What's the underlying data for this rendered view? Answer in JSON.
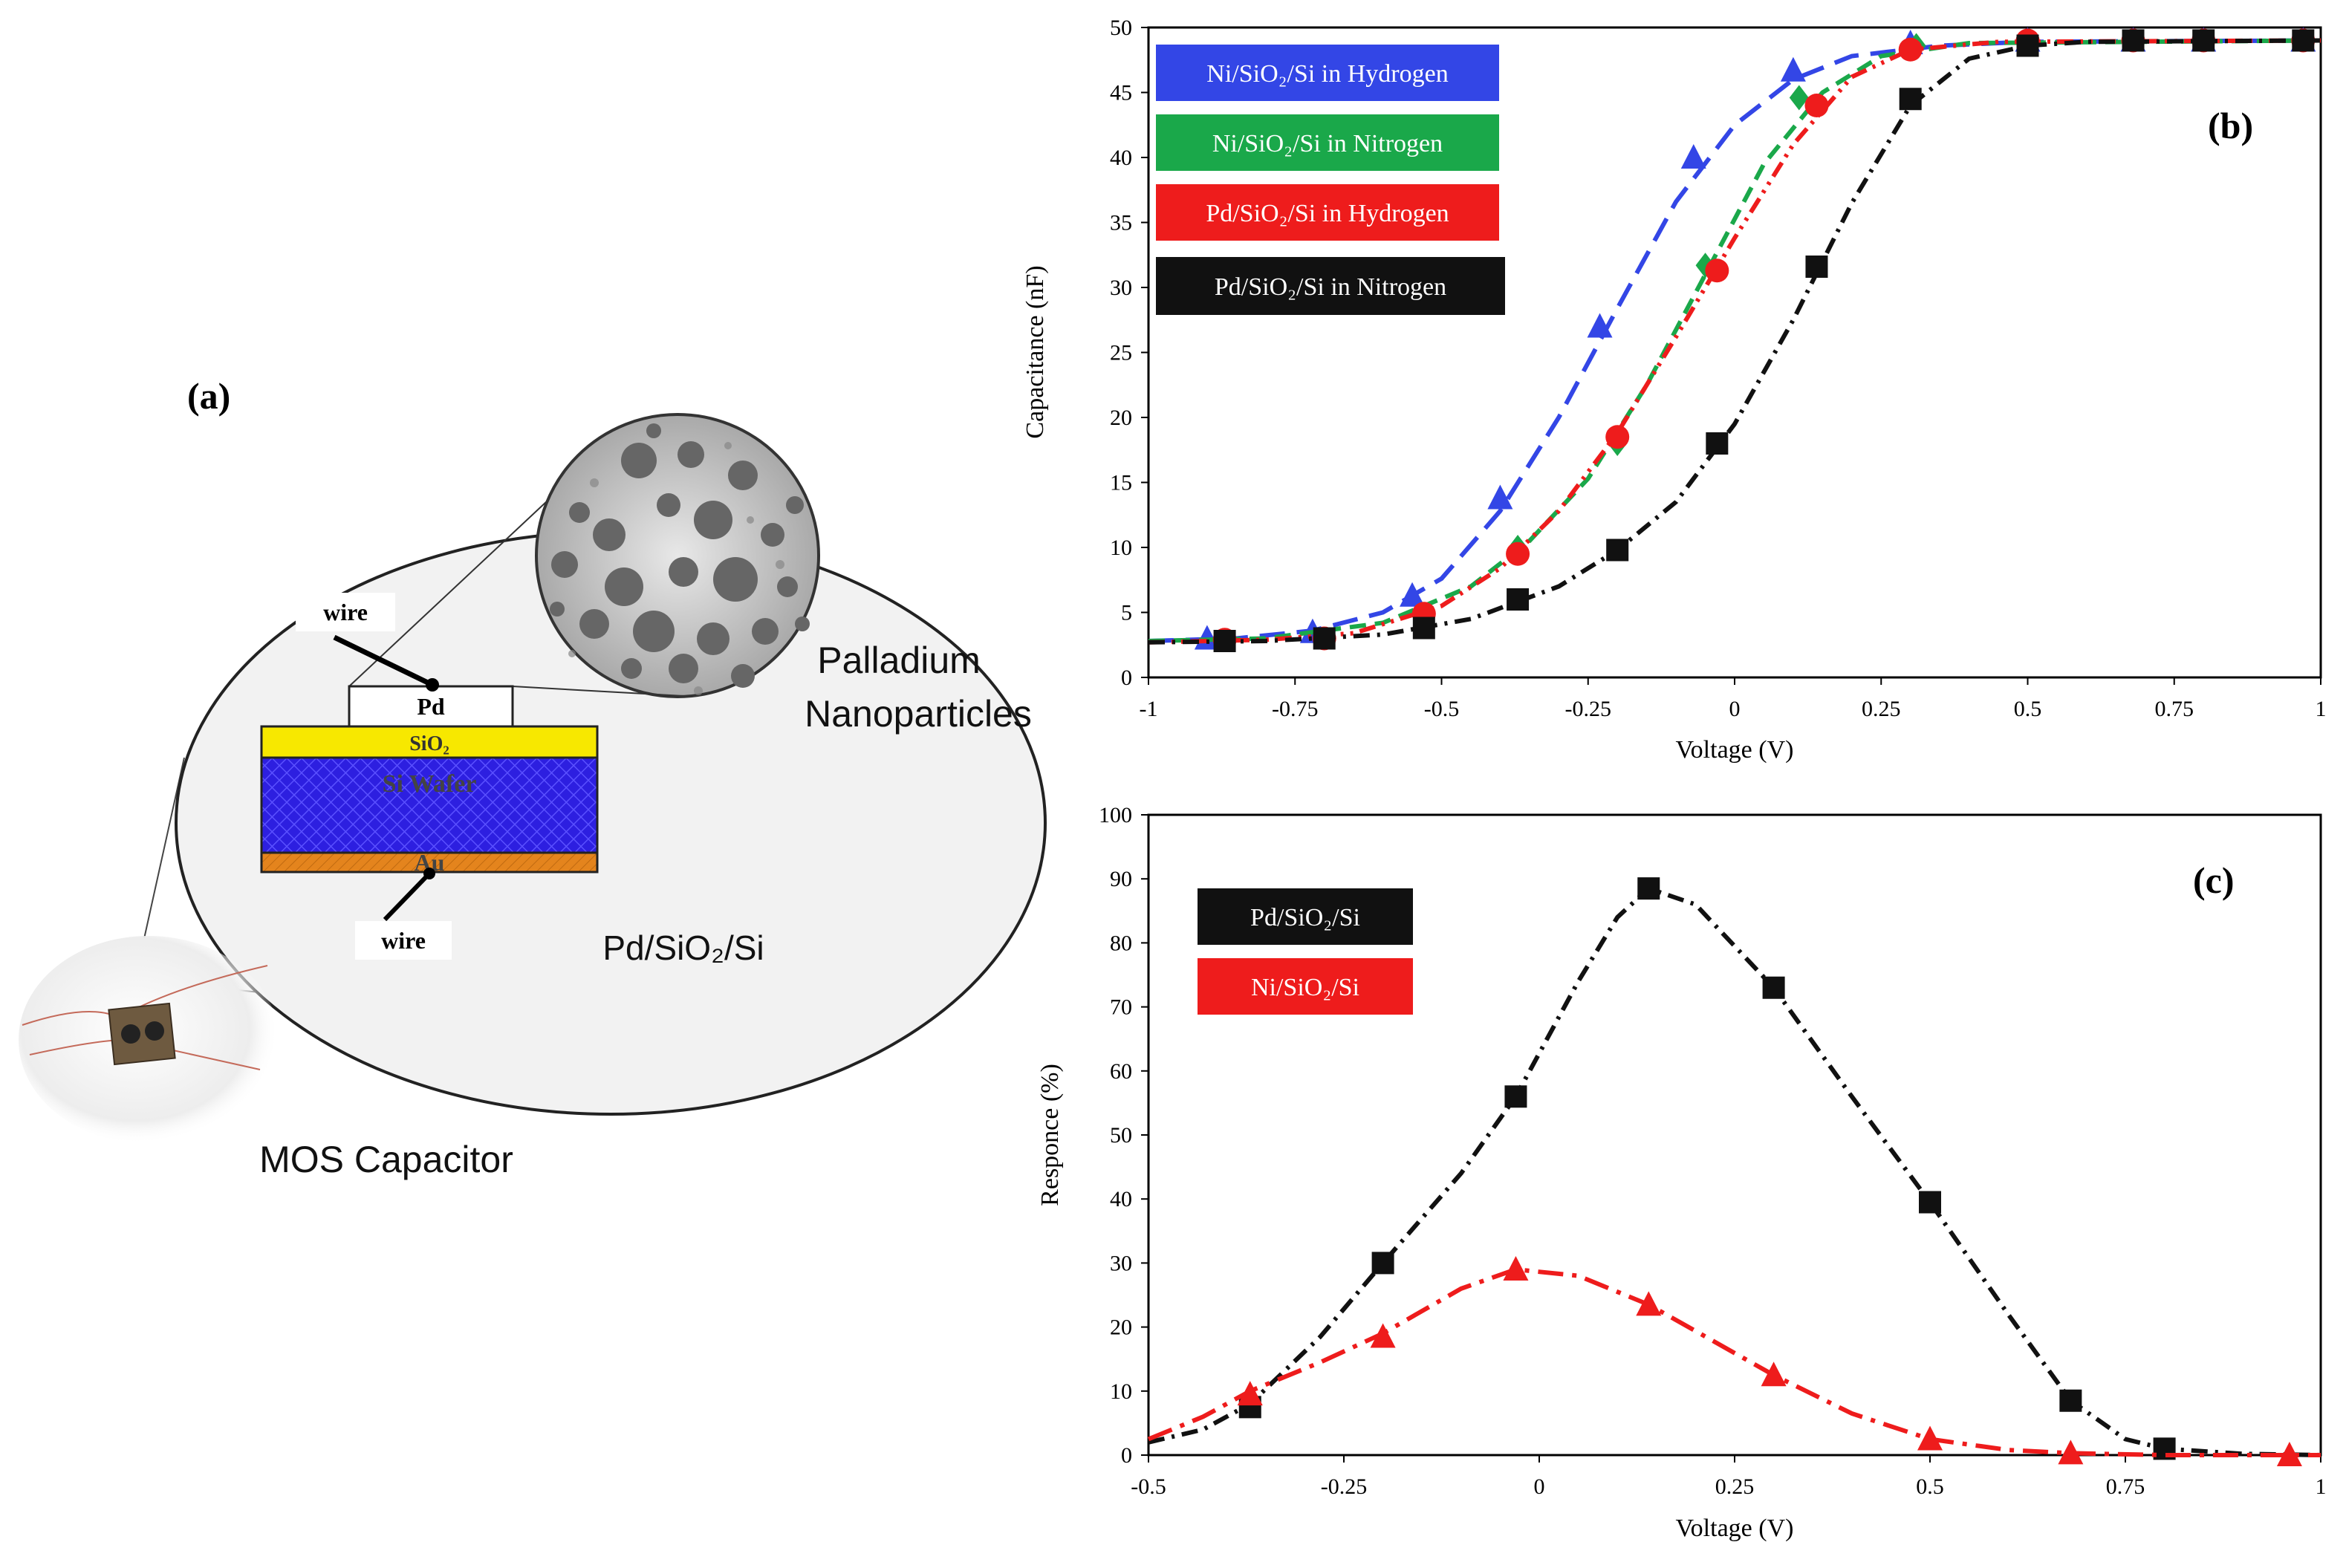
{
  "panel_a": {
    "letter": "(a)",
    "layers": {
      "metal": "Pd",
      "oxide": "SiO₂",
      "wafer": "Si Wafer",
      "back": "Au"
    },
    "wire_top": "wire",
    "wire_bottom": "wire",
    "nanoparticles_line1": "Palladium",
    "nanoparticles_line2": "Nanoparticles",
    "structure_label": "Pd/SiO₂/Si",
    "device_label": "MOS Capacitor"
  },
  "chart_data": [
    {
      "type": "line",
      "panel": "(b)",
      "title": "",
      "xlabel": "Voltage (V)",
      "ylabel": "Capacitance (nF)",
      "xlim": [
        -1,
        1
      ],
      "ylim": [
        0,
        50
      ],
      "xticks": [
        "-1",
        "-0.75",
        "-0.5",
        "-0.25",
        "0",
        "0.25",
        "0.5",
        "0.75",
        "1"
      ],
      "yticks": [
        "0",
        "5",
        "10",
        "15",
        "20",
        "25",
        "30",
        "35",
        "40",
        "45",
        "50"
      ],
      "series": [
        {
          "name": "Ni/SiO₂/Si in Hydrogen",
          "color": "#3346e6",
          "marker": "triangle",
          "dash": "long-dash",
          "points": [
            [
              -0.9,
              3.0
            ],
            [
              -0.72,
              3.5
            ],
            [
              -0.55,
              6.3
            ],
            [
              -0.4,
              13.8
            ],
            [
              -0.23,
              27.0
            ],
            [
              -0.07,
              40.0
            ],
            [
              0.1,
              46.7
            ],
            [
              0.3,
              48.8
            ],
            [
              0.5,
              49.0
            ],
            [
              0.68,
              49.0
            ],
            [
              0.8,
              49.0
            ],
            [
              0.97,
              49.0
            ]
          ],
          "curve": [
            [
              -1,
              2.8
            ],
            [
              -0.85,
              3.0
            ],
            [
              -0.72,
              3.6
            ],
            [
              -0.6,
              5.0
            ],
            [
              -0.5,
              7.6
            ],
            [
              -0.4,
              12.8
            ],
            [
              -0.3,
              20.0
            ],
            [
              -0.2,
              28.4
            ],
            [
              -0.1,
              36.6
            ],
            [
              0.0,
              42.5
            ],
            [
              0.1,
              46.0
            ],
            [
              0.2,
              47.8
            ],
            [
              0.35,
              48.6
            ],
            [
              0.5,
              48.9
            ],
            [
              1,
              49.0
            ]
          ]
        },
        {
          "name": "Ni/SiO₂/Si in Nitrogen",
          "color": "#1aa84a",
          "marker": "diamond",
          "dash": "dash",
          "points": [
            [
              -0.37,
              10.0
            ],
            [
              -0.2,
              18.0
            ],
            [
              -0.05,
              31.7
            ],
            [
              0.11,
              44.6
            ],
            [
              0.31,
              48.6
            ]
          ],
          "curve": [
            [
              -1,
              2.8
            ],
            [
              -0.8,
              3.0
            ],
            [
              -0.6,
              4.2
            ],
            [
              -0.45,
              7.0
            ],
            [
              -0.35,
              10.5
            ],
            [
              -0.25,
              15.3
            ],
            [
              -0.15,
              22.5
            ],
            [
              -0.05,
              31.0
            ],
            [
              0.05,
              39.5
            ],
            [
              0.15,
              45.0
            ],
            [
              0.25,
              47.8
            ],
            [
              0.4,
              48.8
            ],
            [
              1,
              49.0
            ]
          ]
        },
        {
          "name": "Pd/SiO₂/Si in Hydrogen",
          "color": "#ee1c1c",
          "marker": "circle",
          "dash": "dash-dot-dot",
          "points": [
            [
              -0.87,
              2.9
            ],
            [
              -0.7,
              3.0
            ],
            [
              -0.53,
              4.9
            ],
            [
              -0.37,
              9.5
            ],
            [
              -0.2,
              18.5
            ],
            [
              -0.03,
              31.3
            ],
            [
              0.14,
              44.0
            ],
            [
              0.3,
              48.3
            ],
            [
              0.5,
              49.0
            ],
            [
              0.68,
              49.0
            ],
            [
              0.8,
              49.0
            ],
            [
              0.97,
              49.0
            ]
          ],
          "curve": [
            [
              -1,
              2.7
            ],
            [
              -0.8,
              2.9
            ],
            [
              -0.65,
              3.4
            ],
            [
              -0.5,
              5.5
            ],
            [
              -0.4,
              8.4
            ],
            [
              -0.3,
              12.8
            ],
            [
              -0.2,
              18.8
            ],
            [
              -0.1,
              26.2
            ],
            [
              0.0,
              33.8
            ],
            [
              0.1,
              41.0
            ],
            [
              0.2,
              46.2
            ],
            [
              0.3,
              48.3
            ],
            [
              0.45,
              48.9
            ],
            [
              1,
              49.0
            ]
          ]
        },
        {
          "name": "Pd/SiO₂/Si in Nitrogen",
          "color": "#111111",
          "marker": "square",
          "dash": "dash-dot",
          "points": [
            [
              -0.87,
              2.8
            ],
            [
              -0.7,
              3.0
            ],
            [
              -0.53,
              3.8
            ],
            [
              -0.37,
              6.0
            ],
            [
              -0.2,
              9.8
            ],
            [
              -0.03,
              18.0
            ],
            [
              0.14,
              31.6
            ],
            [
              0.3,
              44.5
            ],
            [
              0.5,
              48.6
            ],
            [
              0.68,
              49.0
            ],
            [
              0.8,
              49.0
            ],
            [
              0.97,
              49.0
            ]
          ],
          "curve": [
            [
              -1,
              2.7
            ],
            [
              -0.8,
              2.8
            ],
            [
              -0.6,
              3.3
            ],
            [
              -0.45,
              4.5
            ],
            [
              -0.3,
              7.0
            ],
            [
              -0.2,
              9.8
            ],
            [
              -0.1,
              13.5
            ],
            [
              0.0,
              19.5
            ],
            [
              0.1,
              27.5
            ],
            [
              0.2,
              36.5
            ],
            [
              0.3,
              44.0
            ],
            [
              0.4,
              47.6
            ],
            [
              0.5,
              48.6
            ],
            [
              0.6,
              48.9
            ],
            [
              1,
              49.0
            ]
          ]
        }
      ]
    },
    {
      "type": "line",
      "panel": "(c)",
      "title": "",
      "xlabel": "Voltage (V)",
      "ylabel": "Responce (%)",
      "xlim": [
        -0.5,
        1
      ],
      "ylim": [
        0,
        100
      ],
      "xticks": [
        "-0.5",
        "-0.25",
        "0",
        "0.25",
        "0.5",
        "0.75",
        "1"
      ],
      "yticks": [
        "0",
        "10",
        "20",
        "30",
        "40",
        "50",
        "60",
        "70",
        "80",
        "90",
        "100"
      ],
      "series": [
        {
          "name": "Pd/SiO₂/Si",
          "color": "#111111",
          "marker": "square",
          "dash": "dash-dot",
          "points": [
            [
              -0.37,
              7.5
            ],
            [
              -0.2,
              30.0
            ],
            [
              -0.03,
              56.0
            ],
            [
              0.14,
              88.5
            ],
            [
              0.3,
              73.0
            ],
            [
              0.5,
              39.5
            ],
            [
              0.68,
              8.5
            ],
            [
              0.8,
              1.0
            ]
          ],
          "curve": [
            [
              -0.5,
              2.0
            ],
            [
              -0.43,
              4.0
            ],
            [
              -0.37,
              8.0
            ],
            [
              -0.28,
              18.5
            ],
            [
              -0.2,
              30.0
            ],
            [
              -0.1,
              44.0
            ],
            [
              -0.03,
              56.0
            ],
            [
              0.05,
              74.0
            ],
            [
              0.1,
              84.0
            ],
            [
              0.14,
              88.5
            ],
            [
              0.2,
              86.0
            ],
            [
              0.3,
              73.0
            ],
            [
              0.4,
              56.0
            ],
            [
              0.5,
              39.5
            ],
            [
              0.6,
              22.0
            ],
            [
              0.68,
              8.5
            ],
            [
              0.75,
              2.5
            ],
            [
              0.8,
              1.0
            ],
            [
              0.9,
              0.2
            ],
            [
              1,
              0.0
            ]
          ]
        },
        {
          "name": "Ni/SiO₂/Si",
          "color": "#ee1c1c",
          "marker": "triangle",
          "dash": "long-dash-dot",
          "points": [
            [
              -0.37,
              9.5
            ],
            [
              -0.2,
              18.5
            ],
            [
              -0.03,
              29.0
            ],
            [
              0.14,
              23.5
            ],
            [
              0.3,
              12.5
            ],
            [
              0.5,
              2.5
            ],
            [
              0.68,
              0.3
            ],
            [
              0.96,
              0.0
            ]
          ],
          "curve": [
            [
              -0.5,
              2.5
            ],
            [
              -0.43,
              6.0
            ],
            [
              -0.37,
              10.0
            ],
            [
              -0.28,
              14.5
            ],
            [
              -0.2,
              19.0
            ],
            [
              -0.1,
              26.0
            ],
            [
              -0.03,
              29.0
            ],
            [
              0.05,
              28.0
            ],
            [
              0.14,
              23.5
            ],
            [
              0.22,
              18.0
            ],
            [
              0.3,
              12.5
            ],
            [
              0.4,
              6.5
            ],
            [
              0.5,
              2.5
            ],
            [
              0.6,
              0.8
            ],
            [
              0.68,
              0.3
            ],
            [
              0.8,
              0.0
            ],
            [
              1,
              0.0
            ]
          ]
        }
      ]
    }
  ]
}
